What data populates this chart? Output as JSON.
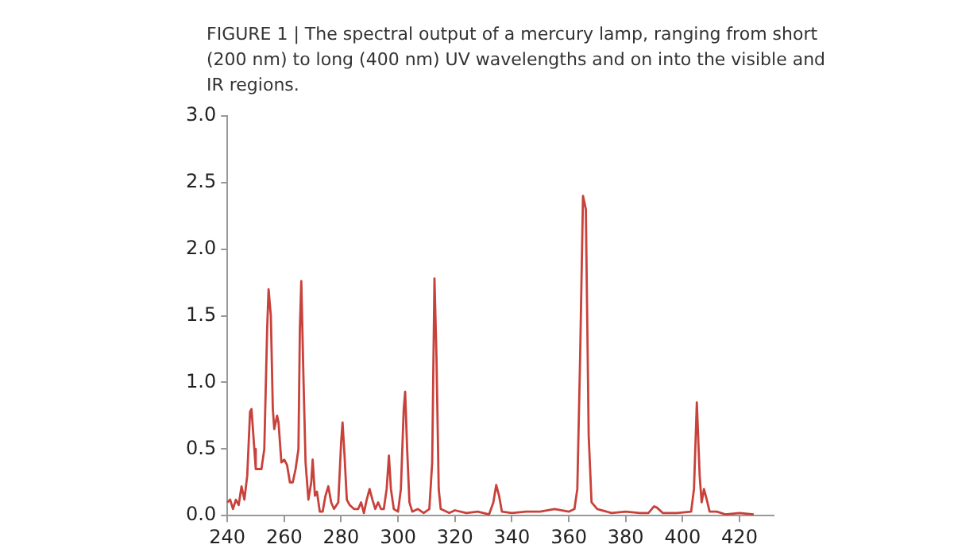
{
  "chart_data": {
    "type": "line",
    "title": "FIGURE 1 | The spectral output of a mercury lamp, ranging from short (200 nm) to long (400 nm) UV wavelengths and on into the visible and IR regions.",
    "xlim": [
      240,
      432
    ],
    "xticks": [
      240,
      260,
      280,
      300,
      320,
      340,
      360,
      380,
      400,
      420
    ],
    "ylim": [
      0,
      3
    ],
    "yticks": [
      {
        "value": 0,
        "label": "0.0"
      },
      {
        "value": 0.5,
        "label": "0.5"
      },
      {
        "value": 1,
        "label": "1.0"
      },
      {
        "value": 1.5,
        "label": "1.5"
      },
      {
        "value": 2,
        "label": "2.0"
      },
      {
        "value": 2.5,
        "label": "2.5"
      },
      {
        "value": 3,
        "label": "3.0"
      }
    ],
    "grid": false,
    "legend": false,
    "marker": "none",
    "line_style": "solid",
    "series": [
      {
        "color": "#c8413b",
        "x": [
          240,
          241,
          242,
          243,
          244,
          245,
          246,
          247,
          248,
          248.5,
          249.5,
          250,
          252,
          253,
          254,
          254.5,
          255.3,
          256,
          256.5,
          257.5,
          258,
          259,
          260,
          261,
          262,
          263,
          264,
          265,
          265.5,
          266,
          266.8,
          267.5,
          268.5,
          269.5,
          270,
          270.8,
          271.5,
          272.5,
          273.5,
          274.5,
          275.5,
          276.5,
          277.5,
          279,
          280,
          280.5,
          281.2,
          282,
          283,
          284.5,
          286,
          287,
          288,
          289,
          290,
          291,
          292,
          293,
          294,
          295,
          296,
          296.8,
          297.5,
          298.5,
          300,
          301,
          302,
          302.5,
          303.2,
          304,
          305,
          307,
          309,
          311,
          312,
          312.8,
          313.5,
          314.3,
          315,
          318,
          320,
          324,
          328,
          332,
          333.5,
          334.5,
          335.5,
          336.5,
          340,
          345,
          350,
          355,
          360,
          362,
          363,
          364,
          365,
          366,
          367,
          368,
          370,
          375,
          380,
          385,
          388,
          390,
          391,
          393,
          398,
          403,
          404,
          405,
          406,
          406.7,
          407.5,
          408.5,
          409.5,
          412,
          415,
          420,
          425
        ],
        "values": [
          0.1,
          0.12,
          0.05,
          0.12,
          0.08,
          0.22,
          0.12,
          0.3,
          0.78,
          0.8,
          0.5,
          0.35,
          0.35,
          0.5,
          1.4,
          1.7,
          1.5,
          0.8,
          0.65,
          0.75,
          0.7,
          0.4,
          0.42,
          0.38,
          0.25,
          0.25,
          0.35,
          0.5,
          1.4,
          1.76,
          1.0,
          0.4,
          0.12,
          0.25,
          0.42,
          0.15,
          0.18,
          0.03,
          0.03,
          0.15,
          0.22,
          0.1,
          0.05,
          0.1,
          0.55,
          0.7,
          0.45,
          0.12,
          0.08,
          0.05,
          0.05,
          0.1,
          0.02,
          0.12,
          0.2,
          0.12,
          0.05,
          0.1,
          0.05,
          0.05,
          0.2,
          0.45,
          0.2,
          0.05,
          0.03,
          0.2,
          0.8,
          0.93,
          0.5,
          0.1,
          0.03,
          0.05,
          0.02,
          0.05,
          0.4,
          1.78,
          1.2,
          0.2,
          0.05,
          0.02,
          0.04,
          0.02,
          0.03,
          0.01,
          0.1,
          0.23,
          0.15,
          0.03,
          0.02,
          0.03,
          0.03,
          0.05,
          0.03,
          0.05,
          0.2,
          1.2,
          2.4,
          2.3,
          0.6,
          0.1,
          0.05,
          0.02,
          0.03,
          0.02,
          0.02,
          0.07,
          0.06,
          0.02,
          0.02,
          0.03,
          0.2,
          0.85,
          0.3,
          0.1,
          0.2,
          0.12,
          0.03,
          0.03,
          0.01,
          0.02,
          0.01
        ]
      }
    ]
  }
}
